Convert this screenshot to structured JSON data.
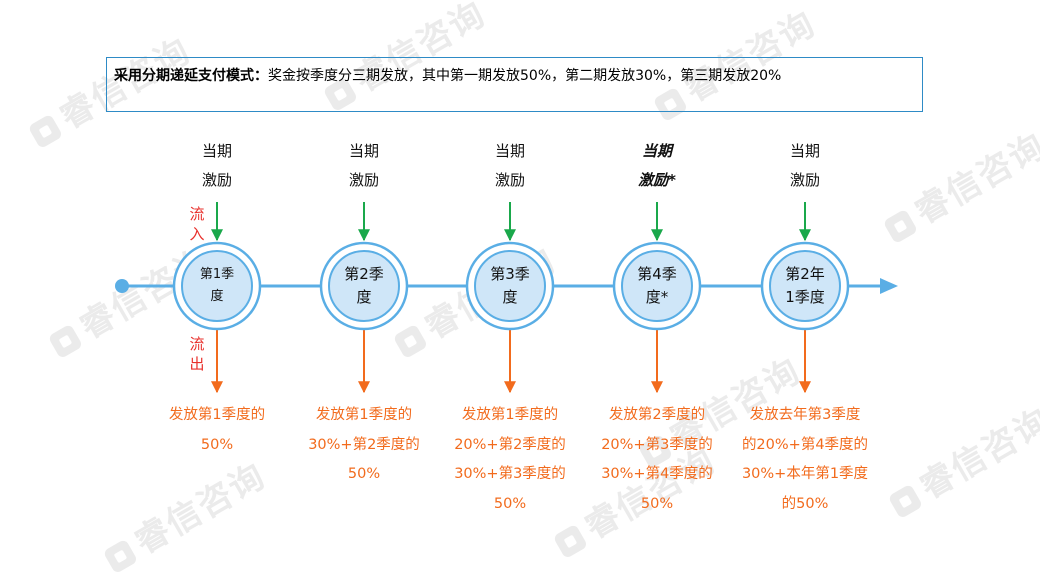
{
  "watermark_text": "睿信咨询",
  "description": {
    "bold_part": "采用分期递延支付模式：",
    "rest": "奖金按季度分三期发放，其中第一期发放50%，第二期发放30%，第三期发放20%"
  },
  "flow_labels": {
    "in": "流入",
    "out": "流出"
  },
  "colors": {
    "timeline": "#5aaee5",
    "circle_fill": "#cfe6f8",
    "circle_border": "#5aaee5",
    "in_arrow": "#1aa84b",
    "out_arrow": "#f26b1d",
    "flow_text": "#e8302c",
    "payout_text": "#f26b1d",
    "box_border": "#2e8bc6"
  },
  "nodes": [
    {
      "top": [
        "当期",
        "激励"
      ],
      "circle": [
        "第1季",
        "度"
      ],
      "payout": [
        "发放第1季度的",
        "50%"
      ]
    },
    {
      "top": [
        "当期",
        "激励"
      ],
      "circle": [
        "第2季",
        "度"
      ],
      "payout": [
        "发放第1季度的",
        "30%+第2季度的",
        "50%"
      ]
    },
    {
      "top": [
        "当期",
        "激励"
      ],
      "circle": [
        "第3季",
        "度"
      ],
      "payout": [
        "发放第1季度的",
        "20%+第2季度的",
        "30%+第3季度的",
        "50%"
      ]
    },
    {
      "top": [
        "当期",
        "激励*"
      ],
      "circle": [
        "第4季",
        "度*"
      ],
      "payout": [
        "发放第2季度的",
        "20%+第3季度的",
        "30%+第4季度的",
        "50%"
      ]
    },
    {
      "top": [
        "当期",
        "激励"
      ],
      "circle": [
        "第2年",
        "1季度"
      ],
      "payout": [
        "发放去年第3季度",
        "的20%+第4季度的",
        "30%+本年第1季度",
        "的50%"
      ]
    }
  ]
}
